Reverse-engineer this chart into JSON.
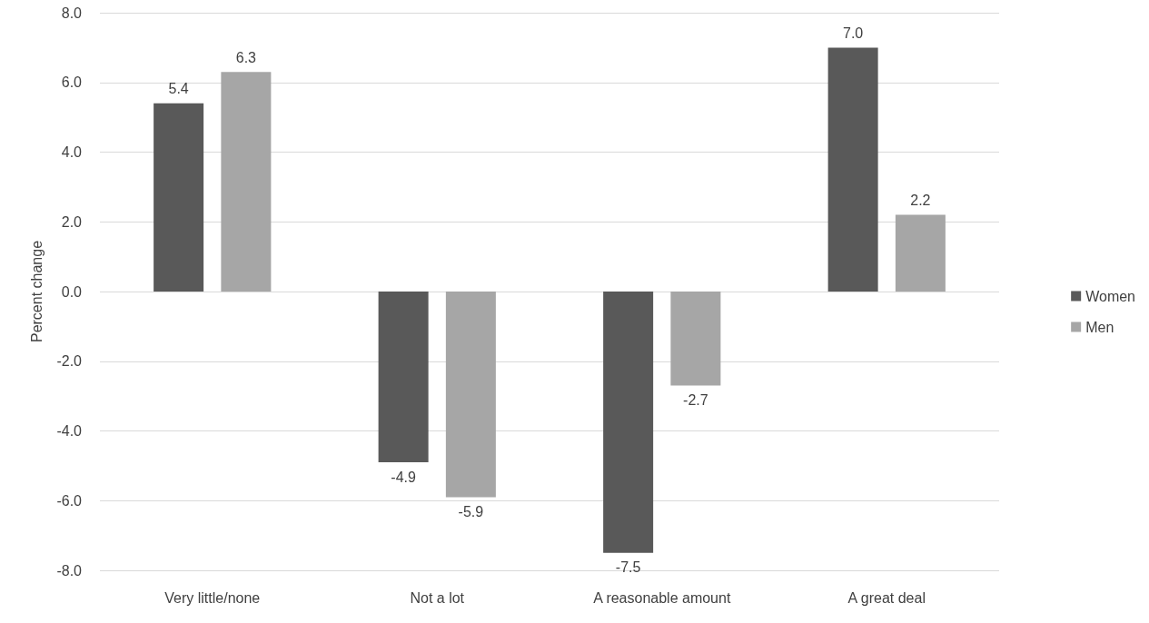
{
  "chart_data": {
    "type": "bar",
    "ylabel": "Percent change",
    "categories": [
      "Very little/none",
      "Not a lot",
      "A reasonable amount",
      "A great deal"
    ],
    "series": [
      {
        "name": "Women",
        "color": "#595959",
        "values": [
          5.4,
          -4.9,
          -7.5,
          7.0
        ],
        "value_labels": [
          "5.4",
          "-4.9",
          "-7.5",
          "7.0"
        ]
      },
      {
        "name": "Men",
        "color": "#a6a6a6",
        "values": [
          6.3,
          -5.9,
          -2.7,
          2.2
        ],
        "value_labels": [
          "6.3",
          "-5.9",
          "-2.7",
          "2.2"
        ]
      }
    ],
    "ylim": [
      -8,
      8
    ],
    "yticks": [
      {
        "value": -8,
        "label": "-8.0"
      },
      {
        "value": -6,
        "label": "-6.0"
      },
      {
        "value": -4,
        "label": "-4.0"
      },
      {
        "value": -2,
        "label": "-2.0"
      },
      {
        "value": 0,
        "label": "0.0"
      },
      {
        "value": 2,
        "label": "2.0"
      },
      {
        "value": 4,
        "label": "4.0"
      },
      {
        "value": 6,
        "label": "6.0"
      },
      {
        "value": 8,
        "label": "8.0"
      }
    ],
    "grid": "y",
    "legend": "right"
  }
}
